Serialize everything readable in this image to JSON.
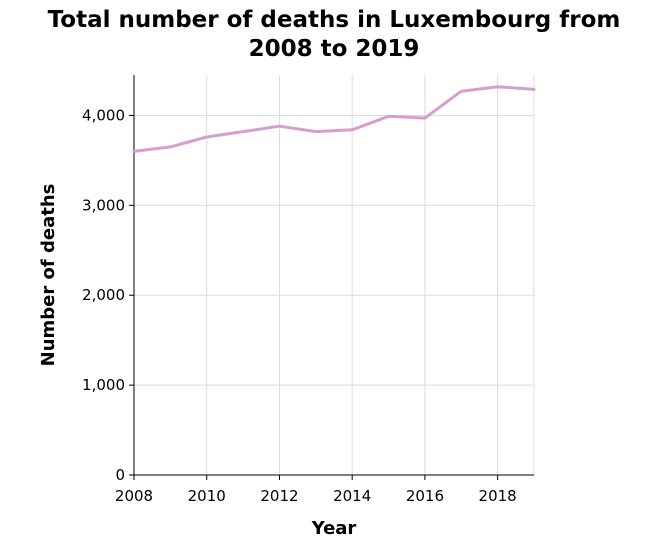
{
  "chart_data": {
    "type": "line",
    "title": "Total number of deaths in Luxembourg from 2008 to 2019",
    "xlabel": "Year",
    "ylabel": "Number of deaths",
    "xlim": [
      2008,
      2019
    ],
    "ylim": [
      0,
      4450
    ],
    "x_ticks": [
      2008,
      2010,
      2012,
      2014,
      2016,
      2018
    ],
    "x_tick_labels": [
      "2008",
      "2010",
      "2012",
      "2014",
      "2016",
      "2018"
    ],
    "y_ticks": [
      0,
      1000,
      2000,
      3000,
      4000
    ],
    "y_tick_labels": [
      "0",
      "1,000",
      "2,000",
      "3,000",
      "4,000"
    ],
    "grid": true,
    "series": [
      {
        "x": [
          2008,
          2009,
          2010,
          2011,
          2012,
          2013,
          2014,
          2015,
          2016,
          2017,
          2018,
          2019
        ],
        "values": [
          3600,
          3650,
          3760,
          3820,
          3880,
          3820,
          3840,
          3990,
          3970,
          4270,
          4320,
          4290
        ],
        "color": "#d59fcd"
      }
    ]
  }
}
